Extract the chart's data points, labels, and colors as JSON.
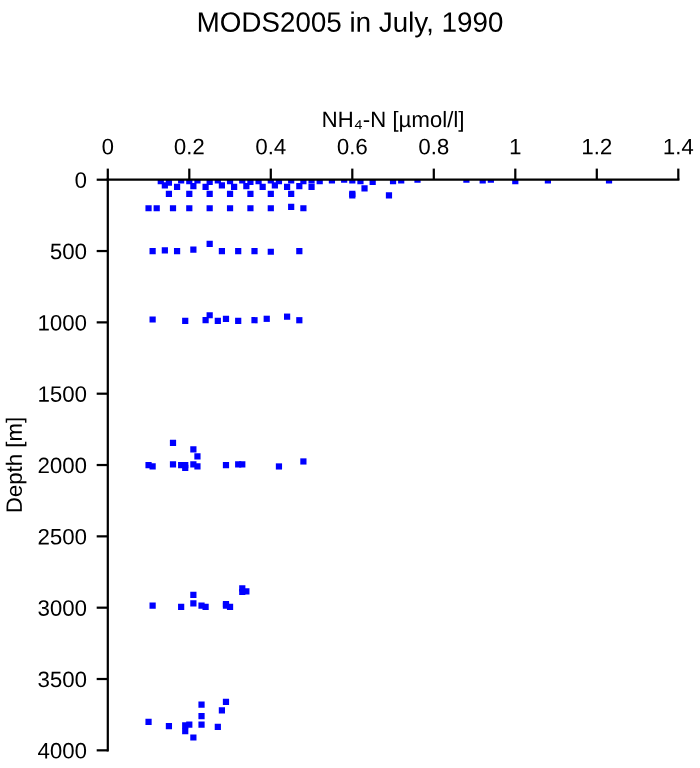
{
  "chart_data": {
    "type": "scatter",
    "title": "MODS2005 in July, 1990",
    "xlabel": "NH₄-N [µmol/l]",
    "ylabel": "Depth [m]",
    "xlim": [
      0,
      1.4
    ],
    "xticks": [
      0,
      0.2,
      0.4,
      0.6,
      0.8,
      1,
      1.2,
      1.4
    ],
    "ylim": [
      4000,
      0
    ],
    "yticks": [
      0,
      500,
      1000,
      1500,
      2000,
      2500,
      3000,
      3500,
      4000
    ],
    "marker": "square",
    "grid": false,
    "legend": false,
    "series": [
      {
        "color": "#0000ff",
        "x": [
          0.13,
          0.15,
          0.18,
          0.2,
          0.22,
          0.25,
          0.27,
          0.3,
          0.33,
          0.35,
          0.37,
          0.4,
          0.42,
          0.45,
          0.48,
          0.5,
          0.52,
          0.55,
          0.58,
          0.6,
          0.62,
          0.65,
          0.7,
          0.72,
          0.76,
          0.88,
          0.92,
          0.94,
          1.0,
          1.08,
          1.23,
          0.14,
          0.17,
          0.21,
          0.24,
          0.28,
          0.31,
          0.34,
          0.38,
          0.41,
          0.44,
          0.47,
          0.5,
          0.6,
          0.63,
          0.15,
          0.2,
          0.25,
          0.3,
          0.35,
          0.4,
          0.45,
          0.6,
          0.69,
          0.1,
          0.12,
          0.16,
          0.2,
          0.25,
          0.3,
          0.35,
          0.4,
          0.45,
          0.48,
          0.11,
          0.14,
          0.17,
          0.21,
          0.25,
          0.28,
          0.32,
          0.36,
          0.4,
          0.47,
          0.11,
          0.19,
          0.24,
          0.25,
          0.27,
          0.29,
          0.32,
          0.36,
          0.39,
          0.44,
          0.47,
          0.1,
          0.11,
          0.16,
          0.16,
          0.18,
          0.19,
          0.19,
          0.21,
          0.21,
          0.22,
          0.22,
          0.29,
          0.32,
          0.33,
          0.42,
          0.48,
          0.11,
          0.18,
          0.21,
          0.21,
          0.23,
          0.24,
          0.29,
          0.29,
          0.3,
          0.33,
          0.33,
          0.34,
          0.1,
          0.15,
          0.19,
          0.19,
          0.2,
          0.21,
          0.23,
          0.23,
          0.23,
          0.27,
          0.28,
          0.29
        ],
        "values": [
          10,
          20,
          5,
          10,
          5,
          15,
          5,
          10,
          5,
          15,
          10,
          5,
          10,
          5,
          10,
          5,
          10,
          5,
          0,
          5,
          10,
          15,
          10,
          5,
          0,
          0,
          5,
          0,
          10,
          5,
          5,
          40,
          50,
          45,
          50,
          40,
          50,
          45,
          50,
          40,
          50,
          45,
          50,
          100,
          60,
          100,
          100,
          100,
          100,
          100,
          100,
          100,
          110,
          110,
          200,
          200,
          200,
          200,
          200,
          200,
          200,
          200,
          190,
          200,
          500,
          495,
          500,
          490,
          450,
          500,
          500,
          500,
          505,
          500,
          980,
          990,
          985,
          950,
          990,
          975,
          990,
          985,
          975,
          960,
          985,
          2000,
          2010,
          1845,
          1995,
          2000,
          2020,
          2000,
          1890,
          1995,
          1940,
          2010,
          2000,
          1995,
          1995,
          2010,
          1975,
          2985,
          2995,
          2910,
          2970,
          2985,
          2995,
          2975,
          2985,
          2995,
          2865,
          2890,
          2885,
          3800,
          3830,
          3825,
          3865,
          3820,
          3910,
          3820,
          3760,
          3680,
          3835,
          3720,
          3660
        ]
      }
    ]
  }
}
